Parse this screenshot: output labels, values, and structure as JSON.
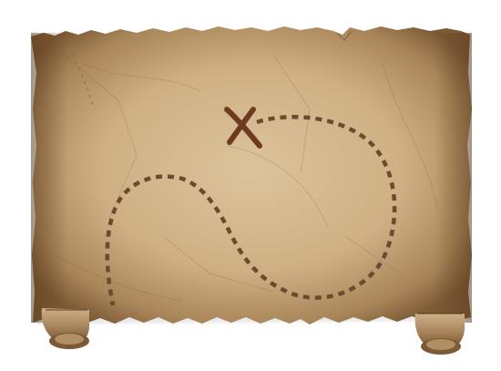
{
  "scene": {
    "subject": "treasure-map-scroll",
    "colors": {
      "background": "#ffffff",
      "parchment_light": "#dcc39c",
      "parchment_mid": "#c9a878",
      "parchment_dark": "#8a6640",
      "edge_burn": "#5a3b1e",
      "path_dashes": "#6b4a30",
      "x_mark": "#6e3b22"
    },
    "marks": {
      "x_mark": "X",
      "trail_style": "dashed"
    }
  }
}
